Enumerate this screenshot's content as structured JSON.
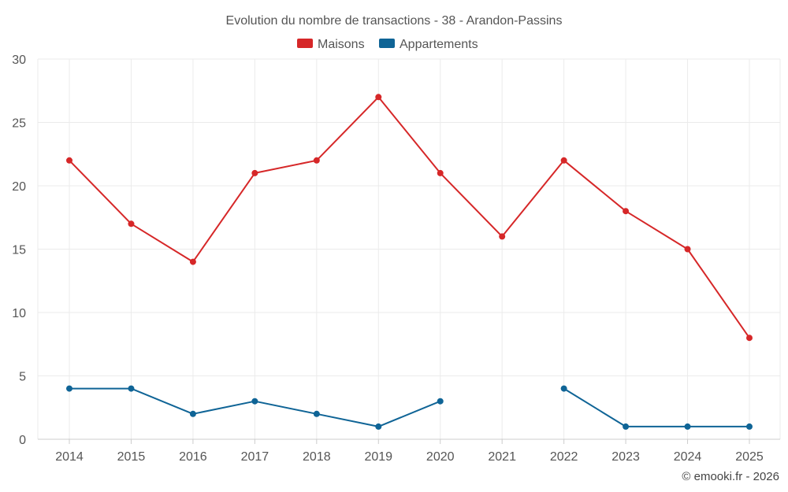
{
  "chart_data": {
    "type": "line",
    "title": "Evolution du nombre de transactions - 38 - Arandon-Passins",
    "categories": [
      "2014",
      "2015",
      "2016",
      "2017",
      "2018",
      "2019",
      "2020",
      "2021",
      "2022",
      "2023",
      "2024",
      "2025"
    ],
    "ylim": [
      0,
      30
    ],
    "yticks": [
      0,
      5,
      10,
      15,
      20,
      25,
      30
    ],
    "grid": true,
    "legend_position": "top-center",
    "series": [
      {
        "name": "Maisons",
        "color": "#d62728",
        "values": [
          22,
          17,
          14,
          21,
          22,
          27,
          21,
          16,
          22,
          18,
          15,
          8
        ]
      },
      {
        "name": "Appartements",
        "color": "#0f6496",
        "values": [
          4,
          4,
          2,
          3,
          2,
          1,
          3,
          null,
          4,
          1,
          1,
          1
        ]
      }
    ],
    "credit": "© emooki.fr - 2026"
  }
}
